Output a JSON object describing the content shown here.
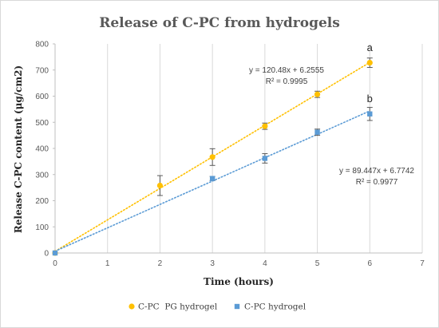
{
  "chart_data": {
    "type": "scatter",
    "title": "Release of C-PC from hydrogels",
    "xlabel": "Time (hours)",
    "ylabel": "Release C-PC content (μg/cm2)",
    "xlim": [
      0,
      7
    ],
    "ylim": [
      0,
      800
    ],
    "x_ticks": [
      0,
      1,
      2,
      3,
      4,
      5,
      6,
      7
    ],
    "y_ticks": [
      0,
      100,
      200,
      300,
      400,
      500,
      600,
      700,
      800
    ],
    "grid": "vertical",
    "legend_position": "bottom",
    "series": [
      {
        "name": "C-PC  PG hydrogel",
        "color": "#FFC000",
        "marker": "circle",
        "x": [
          0,
          2,
          3,
          4,
          5,
          6
        ],
        "y": [
          0,
          258,
          367,
          485,
          607,
          728
        ],
        "error": [
          0,
          38,
          32,
          12,
          12,
          18
        ],
        "trendline": {
          "slope": 120.48,
          "intercept": 6.2555
        },
        "equation": "y = 120.48x + 6.2555",
        "r2": "R² = 0.9995",
        "letter": "a"
      },
      {
        "name": "C-PC hydrogel",
        "color": "#5B9BD5",
        "marker": "square",
        "x": [
          0,
          3,
          4,
          5,
          6
        ],
        "y": [
          0,
          285,
          362,
          462,
          532
        ],
        "error": [
          0,
          8,
          18,
          12,
          25
        ],
        "trendline": {
          "slope": 89.447,
          "intercept": 6.7742
        },
        "equation": "y = 89.447x + 6.7742",
        "r2": "R² = 0.9977",
        "letter": "b"
      }
    ]
  }
}
